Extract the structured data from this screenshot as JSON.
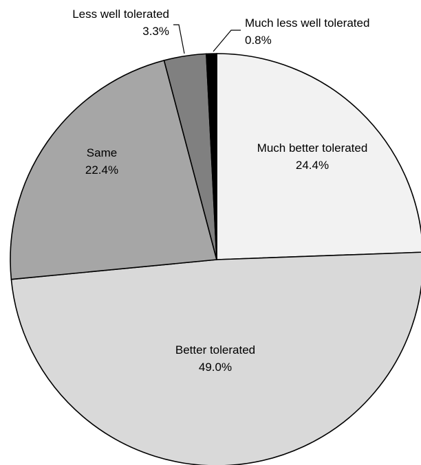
{
  "chart_data": {
    "type": "pie",
    "title": "",
    "legend": "none",
    "slices": [
      {
        "name": "Much better tolerated",
        "value": 24.4,
        "value_label": "24.4%",
        "color": "#f2f2f2"
      },
      {
        "name": "Better tolerated",
        "value": 49.0,
        "value_label": "49.0%",
        "color": "#d9d9d9"
      },
      {
        "name": "Same",
        "value": 22.4,
        "value_label": "22.4%",
        "color": "#a6a6a6"
      },
      {
        "name": "Less well tolerated",
        "value": 3.3,
        "value_label": "3.3%",
        "color": "#808080"
      },
      {
        "name": "Much less well tolerated",
        "value": 0.8,
        "value_label": "0.8%",
        "color": "#000000"
      }
    ]
  }
}
